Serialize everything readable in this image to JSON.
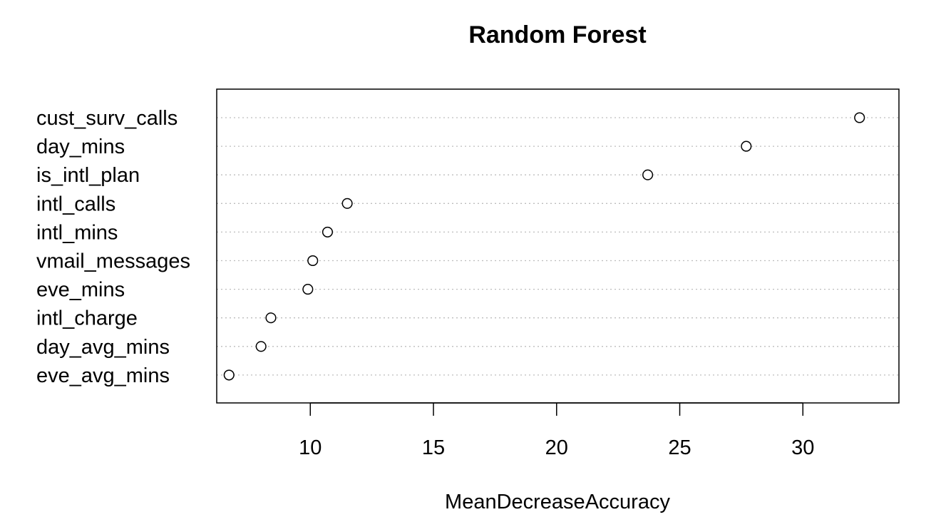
{
  "chart_data": {
    "type": "dotchart",
    "title": "Random Forest",
    "xlabel": "MeanDecreaseAccuracy",
    "xlim": [
      6.2,
      33.9
    ],
    "xticks": [
      10,
      15,
      20,
      25,
      30
    ],
    "xtick_labels": [
      "10",
      "15",
      "20",
      "25",
      "30"
    ],
    "grid": "dotted horizontal guide lines",
    "categories": [
      "cust_surv_calls",
      "day_mins",
      "is_intl_plan",
      "intl_calls",
      "intl_mins",
      "vmail_messages",
      "eve_mins",
      "intl_charge",
      "day_avg_mins",
      "eve_avg_mins"
    ],
    "values": [
      32.3,
      27.7,
      23.7,
      11.5,
      10.7,
      10.1,
      9.9,
      8.4,
      8.0,
      6.7
    ],
    "colors": {
      "point_stroke": "#000000",
      "point_fill": "#ffffff",
      "guide": "#bdbdbd",
      "frame": "#000000"
    }
  }
}
